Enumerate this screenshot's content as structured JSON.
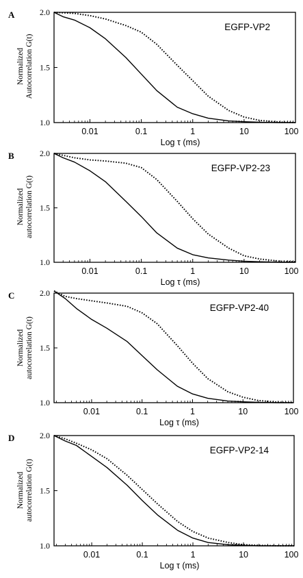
{
  "figure": {
    "x_tick_labels": [
      "0.01",
      "0.1",
      "1",
      "10",
      "100"
    ],
    "y_tick_labels": [
      "1.0",
      "1.5",
      "2.0"
    ]
  },
  "chart_data": [
    {
      "type": "line",
      "panel_label": "A",
      "title": "EGFP-VP2",
      "xlabel": "Log τ (ms)",
      "ylabel": [
        "Normalized",
        "Autocorrelation G(t)"
      ],
      "x_scale": "log",
      "xlim": [
        0.002,
        100
      ],
      "ylim": [
        1.0,
        2.0
      ],
      "series": [
        {
          "style": "solid",
          "x": [
            0.002,
            0.003,
            0.005,
            0.01,
            0.02,
            0.05,
            0.1,
            0.2,
            0.5,
            1,
            2,
            5,
            10,
            20,
            50,
            100
          ],
          "y": [
            2.0,
            1.96,
            1.93,
            1.86,
            1.76,
            1.59,
            1.44,
            1.29,
            1.14,
            1.08,
            1.04,
            1.015,
            1.008,
            1.003,
            1.0,
            1.0
          ]
        },
        {
          "style": "dotted",
          "x": [
            0.002,
            0.005,
            0.01,
            0.02,
            0.05,
            0.1,
            0.2,
            0.5,
            1,
            2,
            5,
            10,
            20,
            50,
            100
          ],
          "y": [
            2.0,
            1.99,
            1.97,
            1.94,
            1.88,
            1.82,
            1.71,
            1.52,
            1.38,
            1.24,
            1.11,
            1.05,
            1.02,
            1.005,
            1.0
          ]
        }
      ]
    },
    {
      "type": "line",
      "panel_label": "B",
      "title": "EGFP-VP2-23",
      "xlabel": "Log τ (ms)",
      "ylabel": [
        "Normalized",
        "autocorrelation G(t)"
      ],
      "x_scale": "log",
      "xlim": [
        0.002,
        100
      ],
      "ylim": [
        1.0,
        2.0
      ],
      "series": [
        {
          "style": "solid",
          "x": [
            0.002,
            0.003,
            0.005,
            0.01,
            0.02,
            0.05,
            0.1,
            0.2,
            0.5,
            1,
            2,
            5,
            10,
            20,
            50,
            100
          ],
          "y": [
            2.0,
            1.96,
            1.92,
            1.84,
            1.74,
            1.56,
            1.42,
            1.27,
            1.13,
            1.07,
            1.04,
            1.02,
            1.01,
            1.005,
            1.0,
            1.0
          ]
        },
        {
          "style": "dotted",
          "x": [
            0.002,
            0.005,
            0.01,
            0.02,
            0.05,
            0.1,
            0.2,
            0.5,
            1,
            2,
            5,
            10,
            20,
            50,
            100
          ],
          "y": [
            2.0,
            1.96,
            1.94,
            1.93,
            1.91,
            1.87,
            1.76,
            1.56,
            1.4,
            1.26,
            1.13,
            1.06,
            1.03,
            1.01,
            1.005
          ]
        }
      ]
    },
    {
      "type": "line",
      "panel_label": "C",
      "title": "EGFP-VP2-40",
      "xlabel": "Log τ (ms)",
      "ylabel": [
        "Normalized",
        "autocorrelation G(t)"
      ],
      "x_scale": "log",
      "xlim": [
        0.0018,
        100
      ],
      "ylim": [
        1.0,
        2.0
      ],
      "series": [
        {
          "style": "solid",
          "x": [
            0.0018,
            0.003,
            0.005,
            0.01,
            0.02,
            0.05,
            0.1,
            0.2,
            0.5,
            1,
            2,
            5,
            10,
            20,
            50,
            100
          ],
          "y": [
            2.02,
            1.95,
            1.86,
            1.76,
            1.68,
            1.56,
            1.43,
            1.3,
            1.15,
            1.08,
            1.04,
            1.015,
            1.008,
            1.003,
            1.0,
            1.0
          ]
        },
        {
          "style": "dotted",
          "x": [
            0.0018,
            0.003,
            0.005,
            0.01,
            0.02,
            0.05,
            0.1,
            0.2,
            0.5,
            1,
            2,
            5,
            10,
            20,
            50,
            100
          ],
          "y": [
            2.03,
            1.97,
            1.95,
            1.93,
            1.91,
            1.88,
            1.82,
            1.72,
            1.52,
            1.36,
            1.22,
            1.1,
            1.05,
            1.02,
            1.005,
            1.0
          ]
        }
      ]
    },
    {
      "type": "line",
      "panel_label": "D",
      "title": "EGFP-VP2-14",
      "xlabel": "Log τ (ms)",
      "ylabel": [
        "Normalized",
        "autocorrelation G(t)"
      ],
      "x_scale": "log",
      "xlim": [
        0.0018,
        100
      ],
      "ylim": [
        1.0,
        2.0
      ],
      "series": [
        {
          "style": "solid",
          "x": [
            0.0018,
            0.003,
            0.005,
            0.01,
            0.02,
            0.05,
            0.1,
            0.2,
            0.5,
            1,
            2,
            5,
            10,
            20,
            50,
            100
          ],
          "y": [
            2.0,
            1.95,
            1.91,
            1.81,
            1.71,
            1.55,
            1.41,
            1.28,
            1.14,
            1.07,
            1.03,
            1.01,
            1.005,
            1.0,
            1.0,
            1.0
          ]
        },
        {
          "style": "dotted",
          "x": [
            0.0018,
            0.003,
            0.005,
            0.01,
            0.02,
            0.05,
            0.1,
            0.2,
            0.5,
            1,
            2,
            5,
            10,
            20,
            50,
            100
          ],
          "y": [
            2.0,
            1.97,
            1.93,
            1.87,
            1.79,
            1.64,
            1.51,
            1.38,
            1.22,
            1.13,
            1.07,
            1.03,
            1.01,
            1.005,
            1.0,
            1.0
          ]
        }
      ]
    }
  ]
}
